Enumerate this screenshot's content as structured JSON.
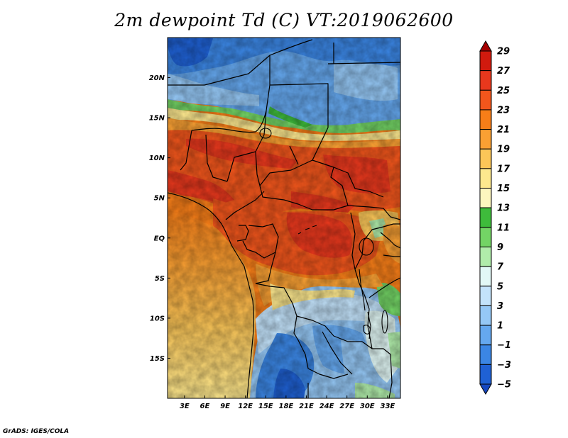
{
  "title": "2m dewpoint Td (C) VT:2019062600",
  "credit": "GrADS: IGES/COLA",
  "map": {
    "region": "Central and West Africa",
    "field": "2m dewpoint",
    "lat_labels": [
      "20N",
      "15N",
      "10N",
      "5N",
      "EQ",
      "5S",
      "10S",
      "15S"
    ],
    "lat_values": [
      20,
      15,
      10,
      5,
      0,
      -5,
      -10,
      -15
    ],
    "lon_labels": [
      "3E",
      "6E",
      "9E",
      "12E",
      "15E",
      "18E",
      "21E",
      "24E",
      "27E",
      "30E",
      "33E"
    ],
    "lon_values": [
      3,
      6,
      9,
      12,
      15,
      18,
      21,
      24,
      27,
      30,
      33
    ],
    "lon_range": [
      0.5,
      34.9
    ],
    "lat_range": [
      -20,
      25
    ]
  },
  "colorbar": {
    "levels": [
      29,
      27,
      25,
      23,
      21,
      19,
      17,
      15,
      13,
      11,
      9,
      7,
      5,
      3,
      1,
      "−1",
      "−3",
      "−5"
    ],
    "colors": [
      "#a50000",
      "#d11a0e",
      "#e8381d",
      "#f2561c",
      "#f77e18",
      "#f9a033",
      "#fbc658",
      "#fde88e",
      "#fdf6bf",
      "#3ebb3b",
      "#73d465",
      "#b0ecaa",
      "#e2f8f6",
      "#c3e3fb",
      "#95c8f6",
      "#65a8ef",
      "#3b86e4",
      "#1f61d4",
      "#1648c0"
    ]
  }
}
